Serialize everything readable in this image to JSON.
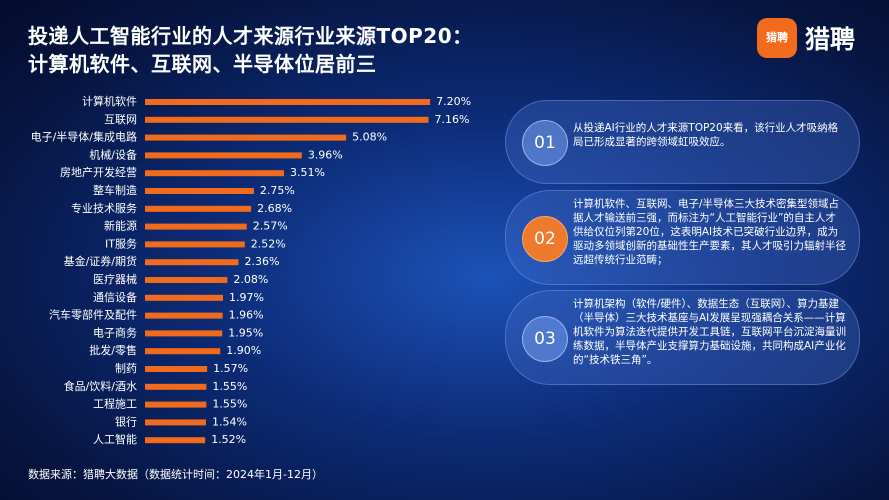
{
  "chart_data": {
    "type": "bar",
    "title": "投递人工智能行业的人才来源行业来源TOP20：",
    "subtitle": "计算机软件、互联网、半导体位居前三",
    "categories": [
      "计算机软件",
      "互联网",
      "电子/半导体/集成电路",
      "机械/设备",
      "房地产开发经营",
      "整车制造",
      "专业技术服务",
      "新能源",
      "IT服务",
      "基金/证券/期货",
      "医疗器械",
      "通信设备",
      "汽车零部件及配件",
      "电子商务",
      "批发/零售",
      "制药",
      "食品/饮料/酒水",
      "工程施工",
      "银行",
      "人工智能"
    ],
    "values": [
      7.2,
      7.16,
      5.08,
      3.96,
      3.51,
      2.75,
      2.68,
      2.57,
      2.52,
      2.36,
      2.08,
      1.97,
      1.96,
      1.95,
      1.9,
      1.57,
      1.55,
      1.55,
      1.54,
      1.52
    ],
    "value_labels": [
      "7.20%",
      "7.16%",
      "5.08%",
      "3.96%",
      "3.51%",
      "2.75%",
      "2.68%",
      "2.57%",
      "2.52%",
      "2.36%",
      "2.08%",
      "1.97%",
      "1.96%",
      "1.95%",
      "1.90%",
      "1.57%",
      "1.55%",
      "1.55%",
      "1.54%",
      "1.52%"
    ],
    "color": "#f26b1d"
  },
  "logo": "猎聘",
  "source": "数据来源：猎聘大数据（数据统计时间：2024年1月-12月）",
  "notes": [
    {
      "number": "01",
      "text": "从投递AI行业的人才来源TOP20来看，该行业人才吸纳格局已形成显著的跨领域虹吸效应。"
    },
    {
      "number": "02",
      "text": "计算机软件、互联网、电子/半导体三大技术密集型领域占据人才输送前三强，而标注为“人工智能行业”的自主人才供给仅位列第20位，这表明AI技术已突破行业边界，成为驱动多领域创新的基础性生产要素，其人才吸引力辐射半径远超传统行业范畴；"
    },
    {
      "number": "03",
      "text": "计算机架构（软件/硬件）、数据生态（互联网）、算力基建（半导体）三大技术基座与AI发展呈现强耦合关系——计算机软件为算法迭代提供开发工具链，互联网平台沉淀海量训练数据，半导体产业支撑算力基础设施，共同构成AI产业化的“技术铁三角”。"
    }
  ]
}
